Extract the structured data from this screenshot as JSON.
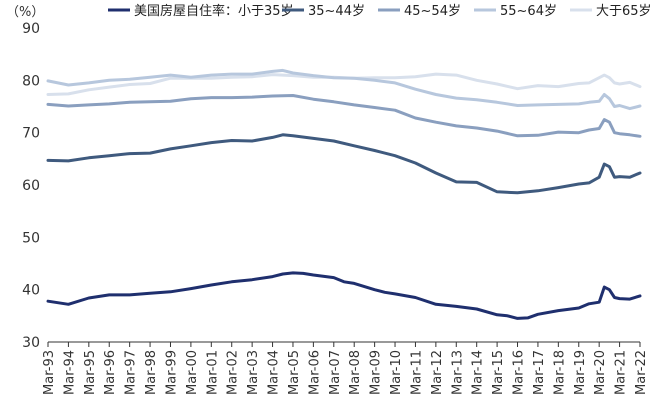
{
  "chart_data": {
    "type": "line",
    "unit_label": "（%）",
    "title": "",
    "xlabel": "",
    "ylabel": "",
    "ylim": [
      30,
      90
    ],
    "yticks": [
      30,
      40,
      50,
      60,
      70,
      80,
      90
    ],
    "grid": false,
    "legend_position": "top",
    "x_ticks": [
      "Mar-93",
      "Mar-94",
      "Mar-95",
      "Mar-96",
      "Mar-97",
      "Mar-98",
      "Mar-99",
      "Mar-00",
      "Mar-01",
      "Mar-02",
      "Mar-03",
      "Mar-04",
      "Mar-05",
      "Mar-06",
      "Mar-07",
      "Mar-08",
      "Mar-09",
      "Mar-10",
      "Mar-11",
      "Mar-12",
      "Mar-13",
      "Mar-14",
      "Mar-15",
      "Mar-16",
      "Mar-17",
      "Mar-18",
      "Mar-19",
      "Mar-20",
      "Mar-21",
      "Mar-22"
    ],
    "x_start_year": 1993,
    "x_end_year": 2022,
    "series": [
      {
        "name": "美国房屋自住率：小于35岁",
        "color": "#1f2f6e",
        "width": 3,
        "points": [
          [
            1993.0,
            37.8
          ],
          [
            1994.0,
            37.2
          ],
          [
            1995.0,
            38.4
          ],
          [
            1996.0,
            39.0
          ],
          [
            1997.0,
            39.0
          ],
          [
            1998.0,
            39.3
          ],
          [
            1999.0,
            39.6
          ],
          [
            2000.0,
            40.2
          ],
          [
            2001.0,
            40.9
          ],
          [
            2002.0,
            41.5
          ],
          [
            2003.0,
            41.9
          ],
          [
            2004.0,
            42.5
          ],
          [
            2004.5,
            43.0
          ],
          [
            2005.0,
            43.2
          ],
          [
            2005.5,
            43.1
          ],
          [
            2006.0,
            42.8
          ],
          [
            2007.0,
            42.3
          ],
          [
            2007.5,
            41.5
          ],
          [
            2008.0,
            41.2
          ],
          [
            2009.0,
            40.0
          ],
          [
            2009.5,
            39.5
          ],
          [
            2010.0,
            39.2
          ],
          [
            2011.0,
            38.5
          ],
          [
            2012.0,
            37.2
          ],
          [
            2013.0,
            36.8
          ],
          [
            2014.0,
            36.3
          ],
          [
            2015.0,
            35.2
          ],
          [
            2015.5,
            35.0
          ],
          [
            2016.0,
            34.5
          ],
          [
            2016.5,
            34.6
          ],
          [
            2017.0,
            35.3
          ],
          [
            2018.0,
            36.0
          ],
          [
            2019.0,
            36.5
          ],
          [
            2019.5,
            37.3
          ],
          [
            2020.0,
            37.6
          ],
          [
            2020.25,
            40.5
          ],
          [
            2020.5,
            40.0
          ],
          [
            2020.75,
            38.5
          ],
          [
            2021.0,
            38.3
          ],
          [
            2021.5,
            38.2
          ],
          [
            2022.0,
            38.8
          ]
        ]
      },
      {
        "name": "35~44岁",
        "color": "#3f5a7e",
        "width": 3,
        "points": [
          [
            1993.0,
            64.7
          ],
          [
            1994.0,
            64.6
          ],
          [
            1995.0,
            65.2
          ],
          [
            1996.0,
            65.6
          ],
          [
            1997.0,
            66.0
          ],
          [
            1998.0,
            66.1
          ],
          [
            1999.0,
            66.9
          ],
          [
            2000.0,
            67.5
          ],
          [
            2001.0,
            68.1
          ],
          [
            2002.0,
            68.5
          ],
          [
            2003.0,
            68.4
          ],
          [
            2004.0,
            69.1
          ],
          [
            2004.5,
            69.6
          ],
          [
            2005.0,
            69.4
          ],
          [
            2006.0,
            68.9
          ],
          [
            2007.0,
            68.4
          ],
          [
            2008.0,
            67.5
          ],
          [
            2009.0,
            66.6
          ],
          [
            2010.0,
            65.6
          ],
          [
            2011.0,
            64.2
          ],
          [
            2012.0,
            62.3
          ],
          [
            2013.0,
            60.6
          ],
          [
            2014.0,
            60.5
          ],
          [
            2015.0,
            58.7
          ],
          [
            2016.0,
            58.5
          ],
          [
            2017.0,
            58.9
          ],
          [
            2018.0,
            59.5
          ],
          [
            2019.0,
            60.2
          ],
          [
            2019.5,
            60.4
          ],
          [
            2020.0,
            61.5
          ],
          [
            2020.25,
            64.0
          ],
          [
            2020.5,
            63.5
          ],
          [
            2020.75,
            61.5
          ],
          [
            2021.0,
            61.6
          ],
          [
            2021.5,
            61.5
          ],
          [
            2022.0,
            62.3
          ]
        ]
      },
      {
        "name": "45~54岁",
        "color": "#8a9fbf",
        "width": 3,
        "points": [
          [
            1993.0,
            75.4
          ],
          [
            1994.0,
            75.1
          ],
          [
            1995.0,
            75.3
          ],
          [
            1996.0,
            75.5
          ],
          [
            1997.0,
            75.8
          ],
          [
            1998.0,
            75.9
          ],
          [
            1999.0,
            76.0
          ],
          [
            2000.0,
            76.5
          ],
          [
            2001.0,
            76.7
          ],
          [
            2002.0,
            76.7
          ],
          [
            2003.0,
            76.8
          ],
          [
            2004.0,
            77.0
          ],
          [
            2005.0,
            77.1
          ],
          [
            2006.0,
            76.4
          ],
          [
            2007.0,
            75.9
          ],
          [
            2008.0,
            75.3
          ],
          [
            2009.0,
            74.8
          ],
          [
            2010.0,
            74.3
          ],
          [
            2011.0,
            72.8
          ],
          [
            2012.0,
            72.0
          ],
          [
            2013.0,
            71.3
          ],
          [
            2014.0,
            70.9
          ],
          [
            2015.0,
            70.3
          ],
          [
            2016.0,
            69.4
          ],
          [
            2017.0,
            69.5
          ],
          [
            2018.0,
            70.1
          ],
          [
            2019.0,
            70.0
          ],
          [
            2019.5,
            70.5
          ],
          [
            2020.0,
            70.8
          ],
          [
            2020.25,
            72.5
          ],
          [
            2020.5,
            72.0
          ],
          [
            2020.75,
            70.0
          ],
          [
            2021.0,
            69.8
          ],
          [
            2021.5,
            69.6
          ],
          [
            2022.0,
            69.3
          ]
        ]
      },
      {
        "name": "55~64岁",
        "color": "#b7c7dd",
        "width": 3,
        "points": [
          [
            1993.0,
            79.9
          ],
          [
            1994.0,
            79.1
          ],
          [
            1995.0,
            79.5
          ],
          [
            1996.0,
            80.0
          ],
          [
            1997.0,
            80.2
          ],
          [
            1998.0,
            80.6
          ],
          [
            1999.0,
            81.0
          ],
          [
            2000.0,
            80.6
          ],
          [
            2001.0,
            81.0
          ],
          [
            2002.0,
            81.2
          ],
          [
            2003.0,
            81.2
          ],
          [
            2004.0,
            81.7
          ],
          [
            2004.5,
            81.9
          ],
          [
            2005.0,
            81.4
          ],
          [
            2006.0,
            80.9
          ],
          [
            2007.0,
            80.5
          ],
          [
            2008.0,
            80.4
          ],
          [
            2009.0,
            80.0
          ],
          [
            2010.0,
            79.5
          ],
          [
            2011.0,
            78.3
          ],
          [
            2012.0,
            77.3
          ],
          [
            2013.0,
            76.6
          ],
          [
            2014.0,
            76.3
          ],
          [
            2015.0,
            75.8
          ],
          [
            2016.0,
            75.2
          ],
          [
            2017.0,
            75.3
          ],
          [
            2018.0,
            75.4
          ],
          [
            2019.0,
            75.5
          ],
          [
            2019.5,
            75.8
          ],
          [
            2020.0,
            76.0
          ],
          [
            2020.25,
            77.3
          ],
          [
            2020.5,
            76.5
          ],
          [
            2020.75,
            75.0
          ],
          [
            2021.0,
            75.2
          ],
          [
            2021.5,
            74.6
          ],
          [
            2022.0,
            75.1
          ]
        ]
      },
      {
        "name": "大于65岁",
        "color": "#d8e0ec",
        "width": 3,
        "points": [
          [
            1993.0,
            77.3
          ],
          [
            1994.0,
            77.4
          ],
          [
            1995.0,
            78.2
          ],
          [
            1996.0,
            78.7
          ],
          [
            1997.0,
            79.2
          ],
          [
            1998.0,
            79.4
          ],
          [
            1999.0,
            80.4
          ],
          [
            2000.0,
            80.4
          ],
          [
            2001.0,
            80.4
          ],
          [
            2002.0,
            80.6
          ],
          [
            2003.0,
            80.7
          ],
          [
            2004.0,
            81.1
          ],
          [
            2005.0,
            80.9
          ],
          [
            2006.0,
            80.6
          ],
          [
            2007.0,
            80.6
          ],
          [
            2008.0,
            80.4
          ],
          [
            2009.0,
            80.5
          ],
          [
            2010.0,
            80.5
          ],
          [
            2011.0,
            80.7
          ],
          [
            2012.0,
            81.2
          ],
          [
            2013.0,
            81.0
          ],
          [
            2014.0,
            80.0
          ],
          [
            2015.0,
            79.3
          ],
          [
            2016.0,
            78.4
          ],
          [
            2017.0,
            79.0
          ],
          [
            2018.0,
            78.8
          ],
          [
            2019.0,
            79.4
          ],
          [
            2019.5,
            79.5
          ],
          [
            2020.0,
            80.5
          ],
          [
            2020.25,
            81.0
          ],
          [
            2020.5,
            80.5
          ],
          [
            2020.75,
            79.5
          ],
          [
            2021.0,
            79.3
          ],
          [
            2021.5,
            79.6
          ],
          [
            2022.0,
            78.8
          ]
        ]
      }
    ]
  }
}
